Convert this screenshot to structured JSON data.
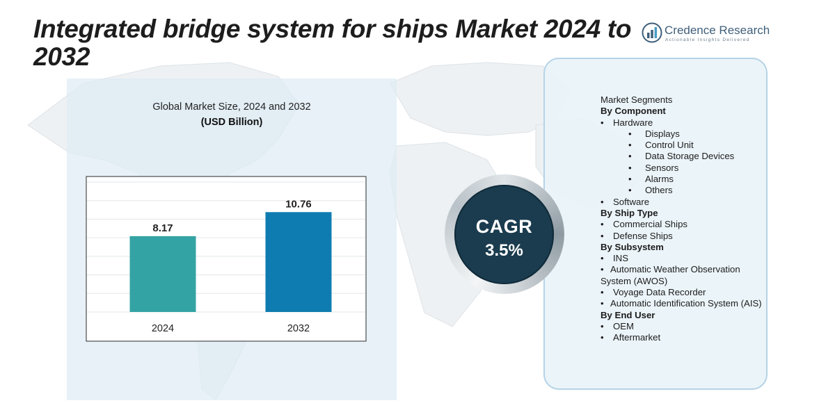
{
  "title": "Integrated bridge system for ships Market 2024 to 2032",
  "logo": {
    "name": "Credence Research",
    "tagline": "Actionable Insights Delivered"
  },
  "chart_data": {
    "type": "bar",
    "title": "Global Market Size, 2024 and 2032",
    "unit": "(USD Billion)",
    "categories": [
      "2024",
      "2032"
    ],
    "values": [
      8.17,
      10.76
    ],
    "data_labels": [
      "8.17",
      "10.76"
    ],
    "bar_colors": [
      "#34a3a3",
      "#0f7cb1"
    ],
    "ylim": [
      0,
      14
    ],
    "grid": true,
    "xlabel": "",
    "ylabel": ""
  },
  "cagr": {
    "label": "CAGR",
    "value": "3.5%"
  },
  "segments": {
    "heading": "Market Segments",
    "groups": [
      {
        "title": "By Component",
        "items": [
          {
            "label": "Hardware",
            "sub": [
              "Displays",
              "Control Unit",
              "Data Storage Devices",
              "Sensors",
              "Alarms",
              "Others"
            ]
          },
          {
            "label": "Software"
          }
        ]
      },
      {
        "title": "By Ship Type",
        "items": [
          {
            "label": "Commercial Ships"
          },
          {
            "label": "Defense Ships"
          }
        ]
      },
      {
        "title": "By Subsystem",
        "items": [
          {
            "label": "INS"
          },
          {
            "label": "Automatic Weather Observation System (AWOS)"
          },
          {
            "label": "Voyage Data Recorder"
          },
          {
            "label": "Automatic Identification System (AIS)"
          }
        ]
      },
      {
        "title": "By End User",
        "items": [
          {
            "label": "OEM"
          },
          {
            "label": "Aftermarket"
          }
        ]
      }
    ]
  }
}
